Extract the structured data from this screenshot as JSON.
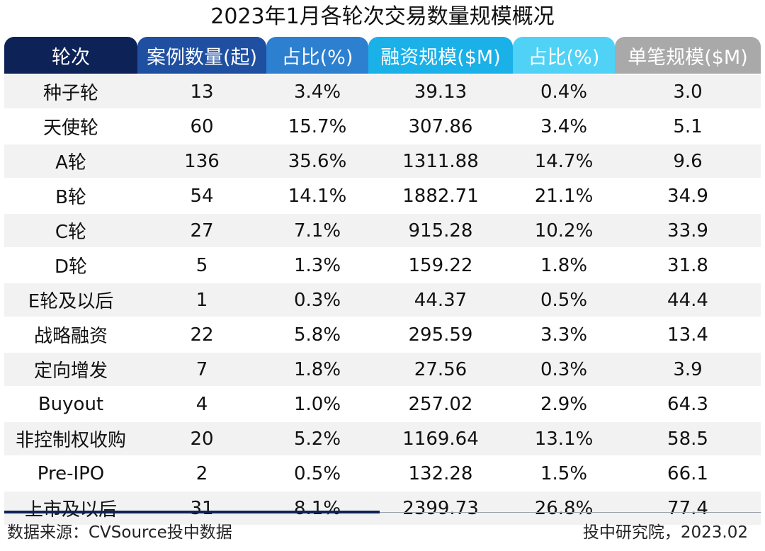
{
  "title": "2023年1月各轮次交易数量规模概况",
  "header_colors": [
    "#0d2257",
    "#1f4fa0",
    "#2d7fd0",
    "#1ab0e8",
    "#4fd2f5",
    "#a9a9a9"
  ],
  "chart_data": {
    "type": "table",
    "columns": [
      "轮次",
      "案例数量(起)",
      "占比(%)",
      "融资规模($M)",
      "占比(%)",
      "单笔规模($M)"
    ],
    "rows": [
      [
        "种子轮",
        "13",
        "3.4%",
        "39.13",
        "0.4%",
        "3.0"
      ],
      [
        "天使轮",
        "60",
        "15.7%",
        "307.86",
        "3.4%",
        "5.1"
      ],
      [
        "A轮",
        "136",
        "35.6%",
        "1311.88",
        "14.7%",
        "9.6"
      ],
      [
        "B轮",
        "54",
        "14.1%",
        "1882.71",
        "21.1%",
        "34.9"
      ],
      [
        "C轮",
        "27",
        "7.1%",
        "915.28",
        "10.2%",
        "33.9"
      ],
      [
        "D轮",
        "5",
        "1.3%",
        "159.22",
        "1.8%",
        "31.8"
      ],
      [
        "E轮及以后",
        "1",
        "0.3%",
        "44.37",
        "0.5%",
        "44.4"
      ],
      [
        "战略融资",
        "22",
        "5.8%",
        "295.59",
        "3.3%",
        "13.4"
      ],
      [
        "定向增发",
        "7",
        "1.8%",
        "27.56",
        "0.3%",
        "3.9"
      ],
      [
        "Buyout",
        "4",
        "1.0%",
        "257.02",
        "2.9%",
        "64.3"
      ],
      [
        "非控制权收购",
        "20",
        "5.2%",
        "1169.64",
        "13.1%",
        "58.5"
      ],
      [
        "Pre-IPO",
        "2",
        "0.5%",
        "132.28",
        "1.5%",
        "66.1"
      ],
      [
        "上市及以后",
        "31",
        "8.1%",
        "2399.73",
        "26.8%",
        "77.4"
      ]
    ]
  },
  "footer": {
    "source": "数据来源：CVSource投中数据",
    "credit": "投中研究院，2023.02"
  }
}
